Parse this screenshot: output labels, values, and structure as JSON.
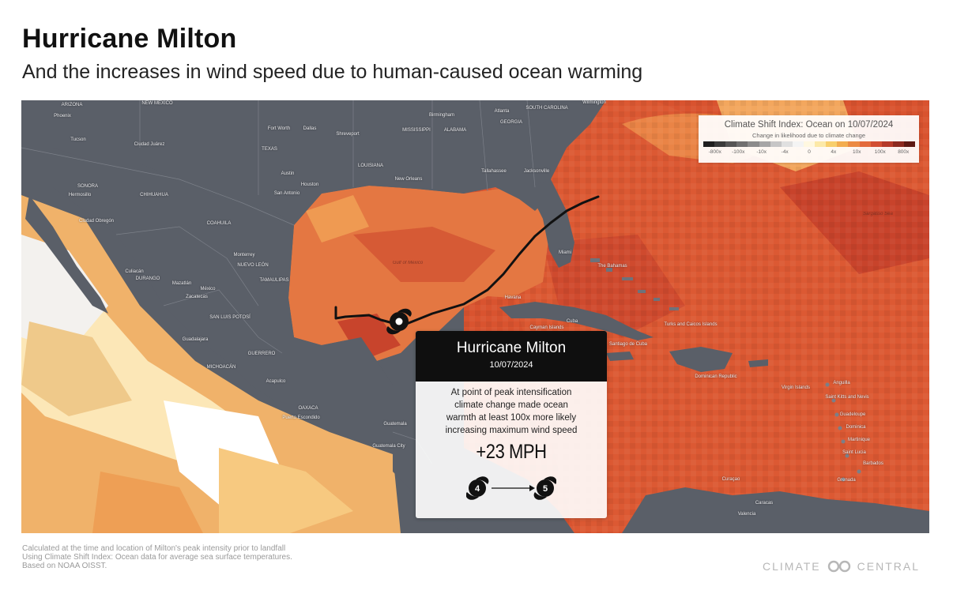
{
  "header": {
    "title": "Hurricane Milton",
    "subtitle": "And the increases in wind speed due to human-caused ocean warming"
  },
  "legend": {
    "title": "Climate Shift Index: Ocean on 10/07/2024",
    "subtitle": "Change in likelihood due to climate change",
    "ticks": [
      "-800x",
      "-100x",
      "-10x",
      "-4x",
      "0",
      "4x",
      "10x",
      "100x",
      "800x"
    ],
    "colors": [
      "#1f1f1f",
      "#3b3b3b",
      "#565656",
      "#707070",
      "#8b8b8b",
      "#a6a6a6",
      "#c6c6c6",
      "#e0e0e0",
      "#f4f4f4",
      "#fff8e0",
      "#fce9a8",
      "#f8cf6c",
      "#f3ad4f",
      "#ec8a43",
      "#e36a3c",
      "#d24e33",
      "#b53a2a",
      "#8c2a20",
      "#5e1a14"
    ]
  },
  "callout": {
    "title": "Hurricane Milton",
    "date": "10/07/2024",
    "text_lines": [
      "At point of peak intensification",
      "climate change made ocean",
      "warmth at least 100x more likely",
      "increasing maximum wind speed"
    ],
    "wind_increase": "+23 MPH",
    "category_from": "4",
    "category_to": "5"
  },
  "map": {
    "places": [
      {
        "name": "ARIZONA",
        "style": "state"
      },
      {
        "name": "NEW MEXICO",
        "style": "state"
      },
      {
        "name": "Phoenix",
        "style": "city"
      },
      {
        "name": "Tucson",
        "style": "city"
      },
      {
        "name": "Ciudad Juárez",
        "style": "city"
      },
      {
        "name": "SONORA",
        "style": "state"
      },
      {
        "name": "Hermosillo",
        "style": "city"
      },
      {
        "name": "CHIHUAHUA",
        "style": "state"
      },
      {
        "name": "Ciudad Obregón",
        "style": "city"
      },
      {
        "name": "COAHUILA",
        "style": "state"
      },
      {
        "name": "TEXAS",
        "style": "state"
      },
      {
        "name": "Fort Worth",
        "style": "city"
      },
      {
        "name": "Dallas",
        "style": "city"
      },
      {
        "name": "Shreveport",
        "style": "city"
      },
      {
        "name": "Austin",
        "style": "city"
      },
      {
        "name": "Houston",
        "style": "city"
      },
      {
        "name": "San Antonio",
        "style": "city"
      },
      {
        "name": "LOUISIANA",
        "style": "state"
      },
      {
        "name": "MISSISSIPPI",
        "style": "state"
      },
      {
        "name": "ALABAMA",
        "style": "state"
      },
      {
        "name": "GEORGIA",
        "style": "state"
      },
      {
        "name": "SOUTH CAROLINA",
        "style": "state"
      },
      {
        "name": "Birmingham",
        "style": "city"
      },
      {
        "name": "Atlanta",
        "style": "city"
      },
      {
        "name": "Wilmington",
        "style": "city"
      },
      {
        "name": "New Orleans",
        "style": "city"
      },
      {
        "name": "Tallahassee",
        "style": "city"
      },
      {
        "name": "Jacksonville",
        "style": "city"
      },
      {
        "name": "Monterrey",
        "style": "city"
      },
      {
        "name": "NUEVO LEÓN",
        "style": "state"
      },
      {
        "name": "Culiacán",
        "style": "city"
      },
      {
        "name": "DURANGO",
        "style": "state"
      },
      {
        "name": "TAMAULIPAS",
        "style": "state"
      },
      {
        "name": "Mazatlán",
        "style": "city"
      },
      {
        "name": "México",
        "style": "country"
      },
      {
        "name": "Zacatecas",
        "style": "city"
      },
      {
        "name": "SAN LUIS POTOSÍ",
        "style": "state"
      },
      {
        "name": "Guadalajara",
        "style": "city"
      },
      {
        "name": "GUERRERO",
        "style": "state"
      },
      {
        "name": "Acapulco",
        "style": "city"
      },
      {
        "name": "MICHOACÁN",
        "style": "state"
      },
      {
        "name": "OAXACA",
        "style": "state"
      },
      {
        "name": "Puerto Escondido",
        "style": "city"
      },
      {
        "name": "Guatemala",
        "style": "country"
      },
      {
        "name": "Guatemala City",
        "style": "city"
      },
      {
        "name": "Gulf of Mexico",
        "style": "sea"
      },
      {
        "name": "Miami",
        "style": "city"
      },
      {
        "name": "Havana",
        "style": "city"
      },
      {
        "name": "Cuba",
        "style": "country"
      },
      {
        "name": "Cayman Islands",
        "style": "country"
      },
      {
        "name": "The Bahamas",
        "style": "country"
      },
      {
        "name": "Santiago de Cuba",
        "style": "city"
      },
      {
        "name": "Turks and Caicos Islands",
        "style": "country"
      },
      {
        "name": "Dominican Republic",
        "style": "country"
      },
      {
        "name": "Sargasso Sea",
        "style": "sea"
      },
      {
        "name": "Anguilla",
        "style": "country"
      },
      {
        "name": "Saint Kitts and Nevis",
        "style": "country"
      },
      {
        "name": "Guadeloupe",
        "style": "country"
      },
      {
        "name": "Dominica",
        "style": "country"
      },
      {
        "name": "Martinique",
        "style": "country"
      },
      {
        "name": "Saint Lucia",
        "style": "country"
      },
      {
        "name": "Barbados",
        "style": "country"
      },
      {
        "name": "Grenada",
        "style": "country"
      },
      {
        "name": "Caracas",
        "style": "city"
      },
      {
        "name": "Valencia",
        "style": "city"
      },
      {
        "name": "Curaçao",
        "style": "country"
      },
      {
        "name": "Virgin Islands",
        "style": "country"
      }
    ]
  },
  "footnote": [
    "Calculated at the time and location of Milton's peak intensity prior to landfall",
    "Using Climate Shift Index: Ocean data for average sea surface temperatures.",
    "Based on NOAA OISST."
  ],
  "brand": {
    "left": "CLIMATE",
    "right": "CENTRAL"
  }
}
